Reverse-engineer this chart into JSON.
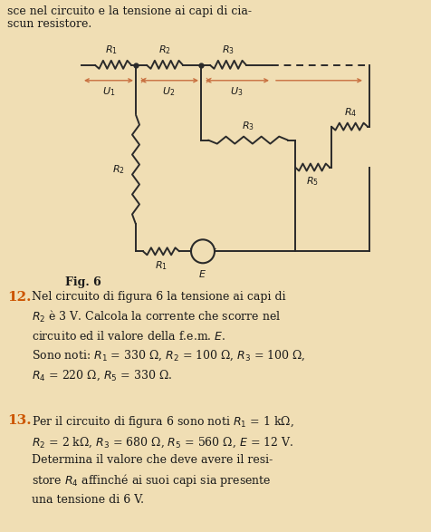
{
  "bg_color": "#f0deb4",
  "text_color": "#1a1a1a",
  "circuit_color": "#2a2a2a",
  "arrow_color": "#c87040",
  "number_color": "#cc5500",
  "figsize": [
    4.77,
    5.87
  ],
  "dpi": 100,
  "header_line1": "sce nel circuito e la tensione ai capi di cia-",
  "header_line2": "scun resistore.",
  "fig_label": "Fig. 6"
}
